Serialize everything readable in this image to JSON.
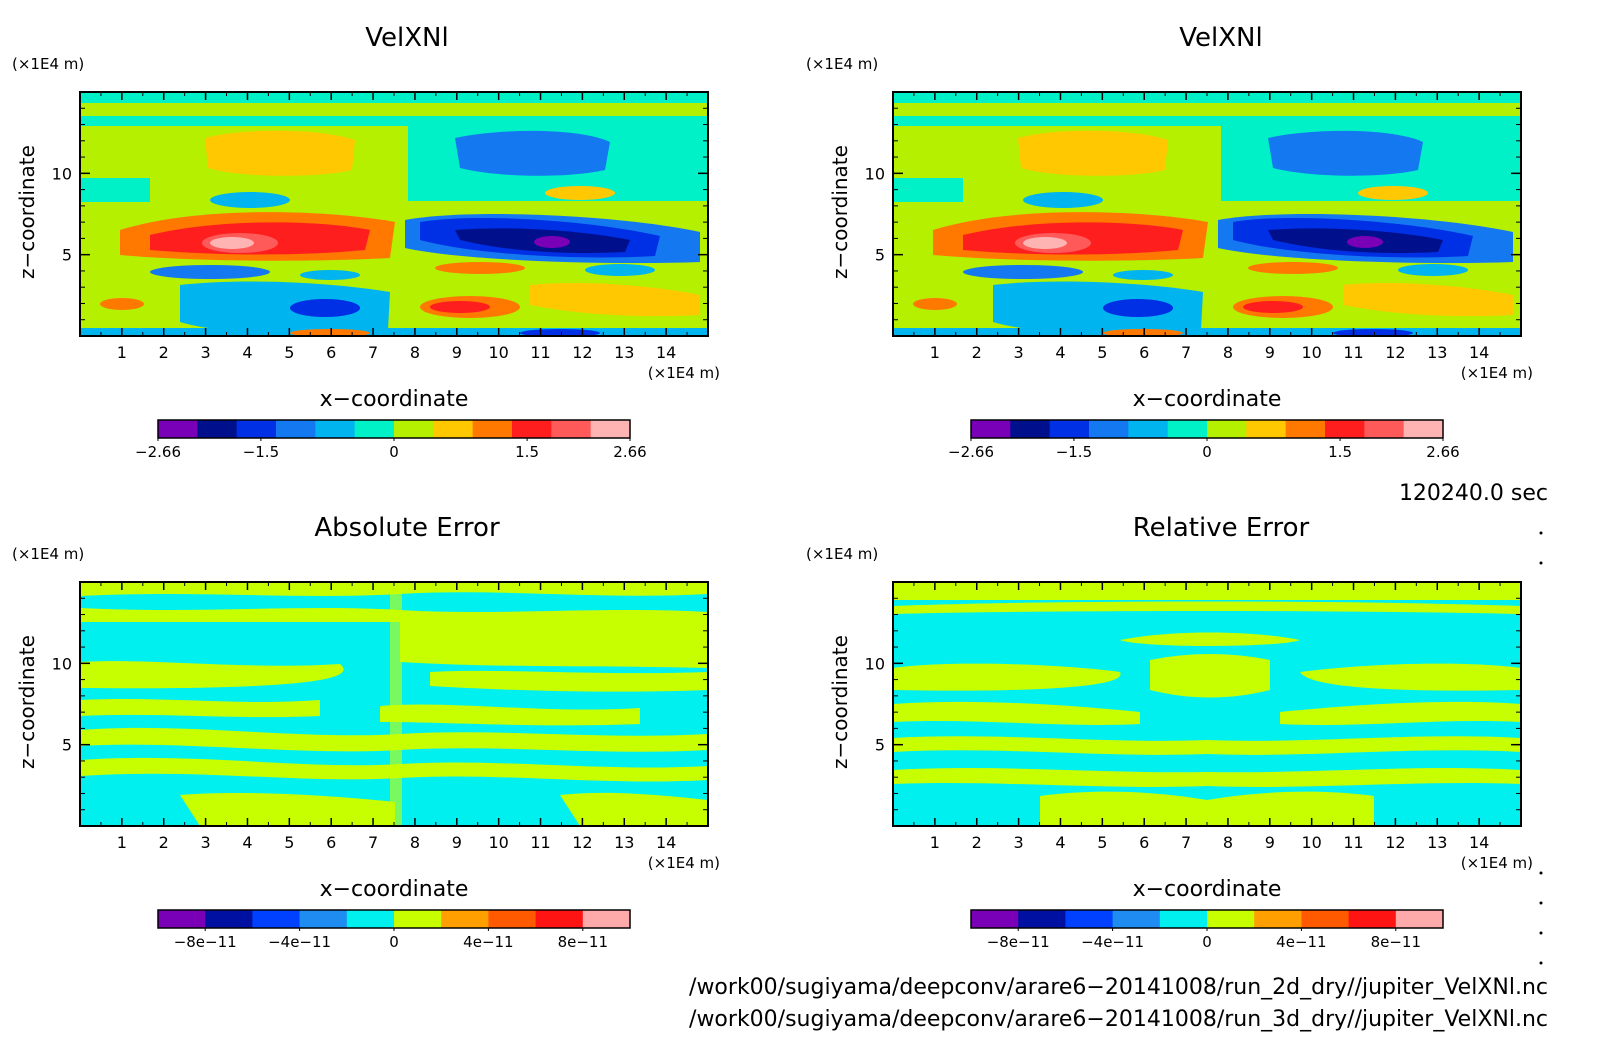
{
  "panels": [
    {
      "title": "VelXNl",
      "x_unit": "(×1E4 m)",
      "y_unit": "(×1E4 m)",
      "xlabel": "x−coordinate",
      "ylabel": "z−coordinate",
      "x_ticks": [
        "1",
        "2",
        "3",
        "4",
        "5",
        "6",
        "7",
        "8",
        "9",
        "10",
        "11",
        "12",
        "13",
        "14"
      ],
      "y_ticks": [
        "5",
        "10"
      ],
      "cbar_labels": [
        "−2.66",
        "−1.5",
        "0",
        "1.5",
        "2.66"
      ]
    },
    {
      "title": "VelXNl",
      "x_unit": "(×1E4 m)",
      "y_unit": "(×1E4 m)",
      "xlabel": "x−coordinate",
      "ylabel": "z−coordinate",
      "x_ticks": [
        "1",
        "2",
        "3",
        "4",
        "5",
        "6",
        "7",
        "8",
        "9",
        "10",
        "11",
        "12",
        "13",
        "14"
      ],
      "y_ticks": [
        "5",
        "10"
      ],
      "cbar_labels": [
        "−2.66",
        "−1.5",
        "0",
        "1.5",
        "2.66"
      ]
    },
    {
      "title": "Absolute Error",
      "x_unit": "(×1E4 m)",
      "y_unit": "(×1E4 m)",
      "xlabel": "x−coordinate",
      "ylabel": "z−coordinate",
      "x_ticks": [
        "1",
        "2",
        "3",
        "4",
        "5",
        "6",
        "7",
        "8",
        "9",
        "10",
        "11",
        "12",
        "13",
        "14"
      ],
      "y_ticks": [
        "5",
        "10"
      ],
      "cbar_labels": [
        "−8e−11",
        "−4e−11",
        "0",
        "4e−11",
        "8e−11"
      ]
    },
    {
      "title": "Relative Error",
      "x_unit": "(×1E4 m)",
      "y_unit": "(×1E4 m)",
      "xlabel": "x−coordinate",
      "ylabel": "z−coordinate",
      "x_ticks": [
        "1",
        "2",
        "3",
        "4",
        "5",
        "6",
        "7",
        "8",
        "9",
        "10",
        "11",
        "12",
        "13",
        "14"
      ],
      "y_ticks": [
        "5",
        "10"
      ],
      "cbar_labels": [
        "−8e−11",
        "−4e−11",
        "0",
        "4e−11",
        "8e−11"
      ]
    }
  ],
  "time_label": "120240.0 sec",
  "file_paths": [
    "/work00/sugiyama/deepconv/arare6−20141008/run_2d_dry//jupiter_VelXNl.nc",
    "/work00/sugiyama/deepconv/arare6−20141008/run_3d_dry//jupiter_VelXNl.nc"
  ],
  "colors": {
    "velocity_levels": [
      "#7a00b8",
      "#00108c",
      "#0030e6",
      "#1478f0",
      "#00b4f0",
      "#00f0c8",
      "#b4f000",
      "#ffc800",
      "#ff7800",
      "#ff1e1e",
      "#ff5a5a",
      "#ffb4b4"
    ],
    "error_levels": [
      "#7a00b8",
      "#0010a0",
      "#0040ff",
      "#1e8cf0",
      "#00f0f0",
      "#c8ff00",
      "#ffa000",
      "#ff5a00",
      "#ff1414",
      "#ffaaaa"
    ]
  },
  "chart_data": [
    {
      "type": "heatmap",
      "title": "VelXNl",
      "xlabel": "x−coordinate",
      "ylabel": "z−coordinate",
      "x_unit": "×1E4 m",
      "y_unit": "×1E4 m",
      "xlim": [
        0,
        15
      ],
      "ylim": [
        0,
        15
      ],
      "colorbar": {
        "min": -2.66,
        "max": 2.66,
        "ticks": [
          -2.66,
          -1.5,
          0,
          1.5,
          2.66
        ]
      },
      "features": [
        {
          "x": 3.5,
          "z": 5.5,
          "value": 2.66,
          "desc": "positive maximum"
        },
        {
          "x": 11,
          "z": 5.5,
          "value": -2.66,
          "desc": "negative minimum"
        },
        {
          "x": 3,
          "z": 11,
          "value": 0.6
        },
        {
          "x": 11,
          "z": 11,
          "value": -0.9
        }
      ]
    },
    {
      "type": "heatmap",
      "title": "VelXNl",
      "xlabel": "x−coordinate",
      "ylabel": "z−coordinate",
      "x_unit": "×1E4 m",
      "y_unit": "×1E4 m",
      "xlim": [
        0,
        15
      ],
      "ylim": [
        0,
        15
      ],
      "colorbar": {
        "min": -2.66,
        "max": 2.66,
        "ticks": [
          -2.66,
          -1.5,
          0,
          1.5,
          2.66
        ]
      },
      "features": [
        {
          "x": 3.5,
          "z": 5.5,
          "value": 2.66
        },
        {
          "x": 11,
          "z": 5.5,
          "value": -2.66
        },
        {
          "x": 3,
          "z": 11,
          "value": 0.6
        },
        {
          "x": 11,
          "z": 11,
          "value": -0.9
        }
      ]
    },
    {
      "type": "heatmap",
      "title": "Absolute Error",
      "xlabel": "x−coordinate",
      "ylabel": "z−coordinate",
      "x_unit": "×1E4 m",
      "y_unit": "×1E4 m",
      "xlim": [
        0,
        15
      ],
      "ylim": [
        0,
        15
      ],
      "colorbar": {
        "min": -1e-10,
        "max": 1e-10,
        "ticks": [
          -8e-11,
          -4e-11,
          0,
          4e-11,
          8e-11
        ]
      },
      "levels_present": [
        -2e-11,
        2e-11
      ]
    },
    {
      "type": "heatmap",
      "title": "Relative Error",
      "xlabel": "x−coordinate",
      "ylabel": "z−coordinate",
      "x_unit": "×1E4 m",
      "y_unit": "×1E4 m",
      "xlim": [
        0,
        15
      ],
      "ylim": [
        0,
        15
      ],
      "colorbar": {
        "min": -1e-10,
        "max": 1e-10,
        "ticks": [
          -8e-11,
          -4e-11,
          0,
          4e-11,
          8e-11
        ]
      },
      "levels_present": [
        -2e-11,
        2e-11
      ]
    }
  ]
}
